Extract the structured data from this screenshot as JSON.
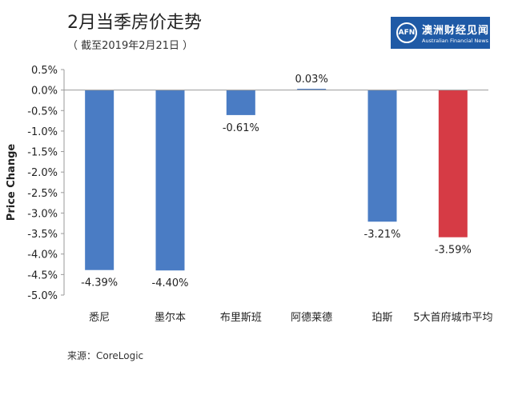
{
  "header": {
    "title": "2月当季房价走势",
    "subtitle": "（ 截至2019年2月21日 ）"
  },
  "logo": {
    "mark": "AFN",
    "cn": "澳洲财经见闻",
    "en": "Australian Financial News",
    "bg_color": "#1f5aa6"
  },
  "footer": {
    "source": "来源：CoreLogic"
  },
  "chart_data": {
    "type": "bar",
    "categories": [
      "悉尼",
      "墨尔本",
      "布里斯班",
      "阿德莱德",
      "珀斯",
      "5大首府城市平均"
    ],
    "values": [
      -4.39,
      -4.4,
      -0.61,
      0.03,
      -3.21,
      -3.59
    ],
    "data_labels": [
      "-4.39%",
      "-4.40%",
      "-0.61%",
      "0.03%",
      "-3.21%",
      "-3.59%"
    ],
    "ylabel": "Price Change",
    "ylim": [
      -5.0,
      0.5
    ],
    "yticks": [
      0.5,
      0.0,
      -0.5,
      -1.0,
      -1.5,
      -2.0,
      -2.5,
      -3.0,
      -3.5,
      -4.0,
      -4.5,
      -5.0
    ],
    "ytick_labels": [
      "0.5%",
      "0.0%",
      "-0.5%",
      "-1.0%",
      "-1.5%",
      "-2.0%",
      "-2.5%",
      "-3.0%",
      "-3.5%",
      "-4.0%",
      "-4.5%",
      "-5.0%"
    ],
    "colors": [
      "#4a7cc4",
      "#4a7cc4",
      "#4a7cc4",
      "#4a7cc4",
      "#4a7cc4",
      "#d63b45"
    ],
    "grid": false
  }
}
